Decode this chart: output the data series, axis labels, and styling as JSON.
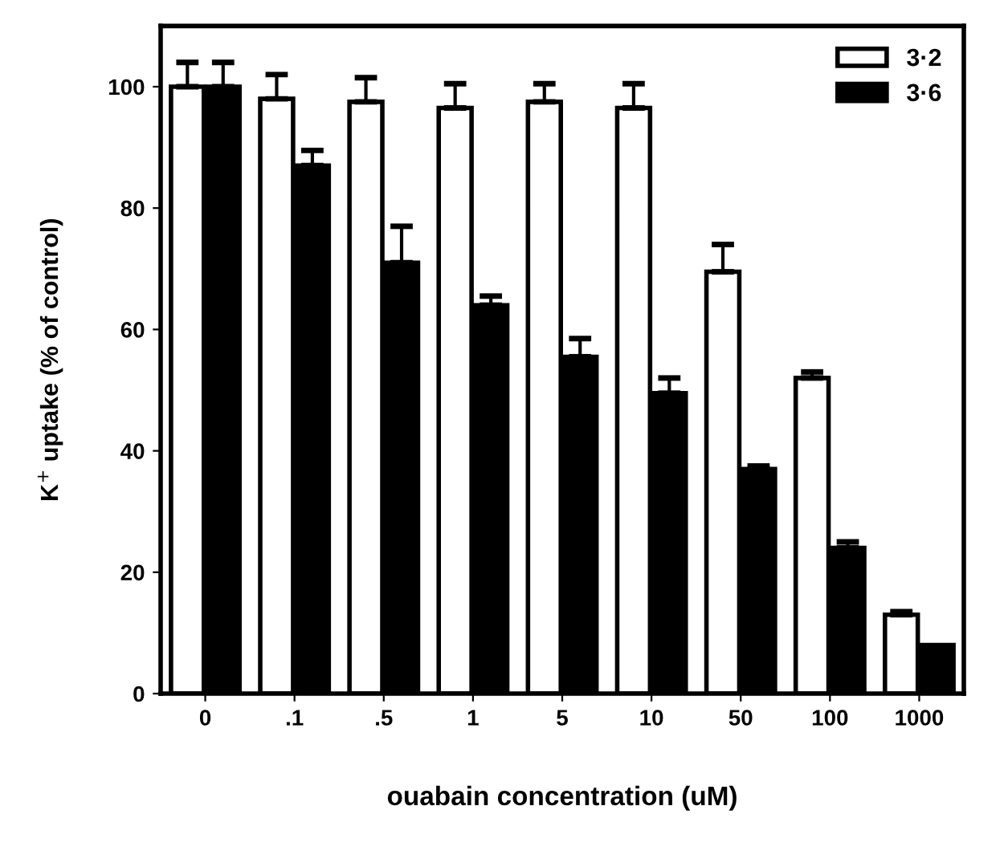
{
  "chart_data": {
    "type": "bar",
    "xlabel": "ouabain concentration (uM)",
    "ylabel": "K$^{+}$ uptake (% of control)",
    "categories": [
      "0",
      ".1",
      ".5",
      "1",
      "5",
      "10",
      "50",
      "100",
      "1000"
    ],
    "series": [
      {
        "name": "3·2",
        "color": "#ffffff",
        "values": [
          100,
          98,
          97.5,
          96.5,
          97.5,
          96.5,
          69.5,
          52,
          13
        ],
        "errors": [
          [
            100,
            104
          ],
          [
            98,
            102
          ],
          [
            97.5,
            101.5
          ],
          [
            96.5,
            100.5
          ],
          [
            97.5,
            100.5
          ],
          [
            96.5,
            100.5
          ],
          [
            69.5,
            74
          ],
          [
            52,
            53
          ],
          [
            13,
            13.5
          ]
        ]
      },
      {
        "name": "3·6",
        "color": "#000000",
        "values": [
          100,
          87,
          71,
          64,
          55.5,
          49.5,
          37,
          24,
          8
        ],
        "errors": [
          [
            100,
            104
          ],
          [
            87,
            89.5
          ],
          [
            71,
            77
          ],
          [
            64,
            65.5
          ],
          [
            55.5,
            58.5
          ],
          [
            49.5,
            52
          ],
          [
            37,
            37.5
          ],
          [
            24,
            25
          ],
          null
        ]
      }
    ],
    "ylim": [
      0,
      110
    ],
    "yticks": [
      0,
      20,
      40,
      60,
      80,
      100
    ],
    "grid": false,
    "legend": "top right"
  }
}
